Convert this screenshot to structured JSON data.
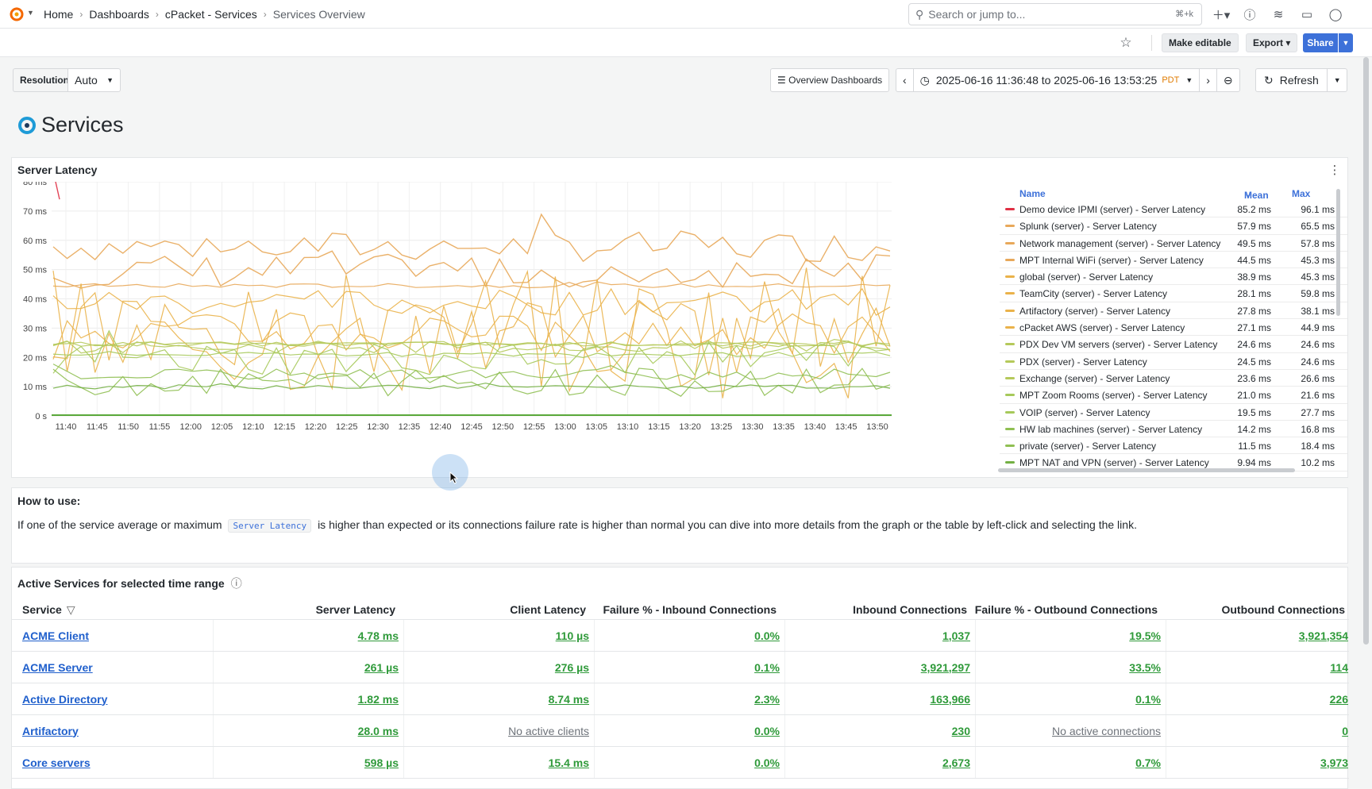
{
  "breadcrumb": [
    "Home",
    "Dashboards",
    "cPacket - Services",
    "Services Overview"
  ],
  "search": {
    "placeholder": "Search or jump to...",
    "shortcut": "⌘+k"
  },
  "toolbar": {
    "make_editable": "Make editable",
    "export": "Export",
    "share": "Share"
  },
  "controls": {
    "resolution_label": "Resolution",
    "resolution_value": "Auto",
    "overview_dashboards": "Overview Dashboards",
    "time_range": "2025-06-16 11:36:48 to 2025-06-16 13:53:25",
    "timezone": "PDT",
    "refresh": "Refresh"
  },
  "page_title": "Services",
  "chart_panel": {
    "title": "Server Latency",
    "legend_headers": {
      "name": "Name",
      "mean": "Mean",
      "max": "Max"
    }
  },
  "chart_data": {
    "type": "line",
    "title": "Server Latency",
    "x_ticks": [
      "11:40",
      "11:45",
      "11:50",
      "11:55",
      "12:00",
      "12:05",
      "12:10",
      "12:15",
      "12:20",
      "12:25",
      "12:30",
      "12:35",
      "12:40",
      "12:45",
      "12:50",
      "12:55",
      "13:00",
      "13:05",
      "13:10",
      "13:15",
      "13:20",
      "13:25",
      "13:30",
      "13:35",
      "13:40",
      "13:45",
      "13:50"
    ],
    "y_ticks": [
      "0 s",
      "10 ms",
      "20 ms",
      "30 ms",
      "40 ms",
      "50 ms",
      "60 ms",
      "70 ms",
      "80 ms"
    ],
    "ylim": [
      0,
      80
    ],
    "grid": true,
    "legend_placement": "right",
    "series": [
      {
        "name": "Demo device IPMI (server) - Server Latency",
        "mean": "85.2 ms",
        "max": "96.1 ms",
        "color": "#e02f44"
      },
      {
        "name": "Splunk (server) - Server Latency",
        "mean": "57.9 ms",
        "max": "65.5 ms",
        "color": "#e8a85a"
      },
      {
        "name": "Network management (server) - Server Latency",
        "mean": "49.5 ms",
        "max": "57.8 ms",
        "color": "#e8a85a"
      },
      {
        "name": "MPT Internal WiFi (server) - Server Latency",
        "mean": "44.5 ms",
        "max": "45.3 ms",
        "color": "#e8a85a"
      },
      {
        "name": "global (server) - Server Latency",
        "mean": "38.9 ms",
        "max": "45.3 ms",
        "color": "#eab24a"
      },
      {
        "name": "TeamCity (server) - Server Latency",
        "mean": "28.1 ms",
        "max": "59.8 ms",
        "color": "#eab24a"
      },
      {
        "name": "Artifactory (server) - Server Latency",
        "mean": "27.8 ms",
        "max": "38.1 ms",
        "color": "#eab24a"
      },
      {
        "name": "cPacket AWS (server) - Server Latency",
        "mean": "27.1 ms",
        "max": "44.9 ms",
        "color": "#eab24a"
      },
      {
        "name": "PDX Dev VM servers (server) - Server Latency",
        "mean": "24.6 ms",
        "max": "24.6 ms",
        "color": "#b5c95a"
      },
      {
        "name": "PDX (server) - Server Latency",
        "mean": "24.5 ms",
        "max": "24.6 ms",
        "color": "#b5c95a"
      },
      {
        "name": "Exchange (server) - Server Latency",
        "mean": "23.6 ms",
        "max": "26.6 ms",
        "color": "#b5c95a"
      },
      {
        "name": "MPT Zoom Rooms (server) - Server Latency",
        "mean": "21.0 ms",
        "max": "21.6 ms",
        "color": "#a6c95a"
      },
      {
        "name": "VOIP (server) - Server Latency",
        "mean": "19.5 ms",
        "max": "27.7 ms",
        "color": "#a6c95a"
      },
      {
        "name": "HW lab machines (server) - Server Latency",
        "mean": "14.2 ms",
        "max": "16.8 ms",
        "color": "#8fbf52"
      },
      {
        "name": "private (server) - Server Latency",
        "mean": "11.5 ms",
        "max": "18.4 ms",
        "color": "#8fbf52"
      },
      {
        "name": "MPT NAT and VPN (server) - Server Latency",
        "mean": "9.94 ms",
        "max": "10.2 ms",
        "color": "#73b043"
      }
    ]
  },
  "howto": {
    "title": "How to use:",
    "text_before": "If one of the service average or maximum",
    "code": "Server Latency",
    "text_after": "is higher than expected or its connections failure rate is higher than normal you can dive into more details from the graph or the table by left-click and selecting the link."
  },
  "services": {
    "title": "Active Services for selected time range",
    "columns": [
      "Service",
      "Server Latency",
      "Client Latency",
      "Failure % - Inbound Connections",
      "Inbound Connections",
      "Failure % - Outbound Connections",
      "Outbound Connections"
    ],
    "rows": [
      [
        "ACME Client",
        "4.78 ms",
        "110 µs",
        "0.0%",
        "1,037",
        "19.5%",
        "3,921,354"
      ],
      [
        "ACME Server",
        "261 µs",
        "276 µs",
        "0.1%",
        "3,921,297",
        "33.5%",
        "114"
      ],
      [
        "Active Directory",
        "1.82 ms",
        "8.74 ms",
        "2.3%",
        "163,966",
        "0.1%",
        "226"
      ],
      [
        "Artifactory",
        "28.0 ms",
        "No active clients",
        "0.0%",
        "230",
        "No active connections",
        "0"
      ],
      [
        "Core servers",
        "598 µs",
        "15.4 ms",
        "0.0%",
        "2,673",
        "0.7%",
        "3,973"
      ]
    ]
  },
  "colors": {
    "accent": "#3d71d9",
    "link": "#1f5fcc",
    "value_green": "#2f9a3a",
    "timezone": "#e07b00"
  }
}
